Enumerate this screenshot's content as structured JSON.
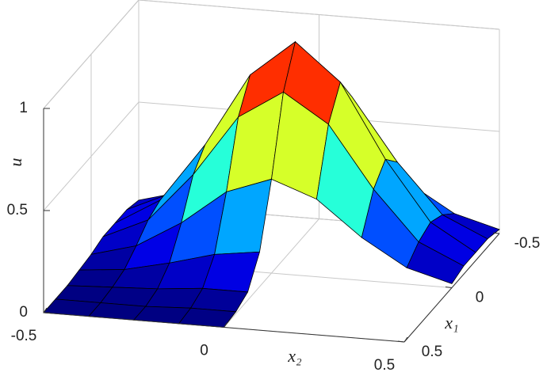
{
  "chart_data": {
    "type": "surface",
    "xlabel": "x₂",
    "ylabel": "x₁",
    "zlabel": "u",
    "x": [
      -0.5,
      -0.375,
      -0.25,
      -0.125,
      0,
      0.125,
      0.25,
      0.375,
      0.5
    ],
    "y": [
      -0.5,
      -0.375,
      -0.25,
      -0.125,
      0,
      0.125,
      0.25,
      0.375,
      0.5
    ],
    "z": [
      [
        0.02,
        0.08,
        0.21,
        0.38,
        0.46,
        0.38,
        0.21,
        0.08,
        0.02
      ],
      [
        0.04,
        0.14,
        0.38,
        0.68,
        0.82,
        0.68,
        0.38,
        0.14,
        0.04
      ],
      [
        0.04,
        0.17,
        0.46,
        0.82,
        1,
        0.82,
        0.46,
        0.17,
        0.04
      ],
      [
        0.04,
        0.14,
        0.38,
        0.68,
        0.82,
        0.68,
        0.38,
        0.14,
        0.04
      ],
      [
        0.02,
        0.08,
        0.21,
        0.38,
        0.46,
        0.38,
        0.21,
        0.08,
        0.02
      ],
      [
        0.01,
        0.03,
        0.08,
        0.14,
        0.17,
        null,
        null,
        null,
        null
      ],
      [
        0,
        0.01,
        0.02,
        0.04,
        0.04,
        null,
        null,
        null,
        null
      ],
      [
        0,
        0,
        0,
        0.01,
        0.01,
        null,
        null,
        null,
        null
      ],
      [
        0,
        0,
        0,
        0,
        0,
        null,
        null,
        null,
        null
      ]
    ],
    "xlim": [
      -0.5,
      0.5
    ],
    "ylim": [
      -0.5,
      0.5
    ],
    "zlim": [
      0,
      1
    ],
    "xticks": [
      -0.5,
      0,
      0.5
    ],
    "yticks": [
      -0.5,
      0,
      0.5
    ],
    "zticks": [
      0,
      0.5,
      1
    ],
    "colormap": "jet",
    "grid": true
  }
}
